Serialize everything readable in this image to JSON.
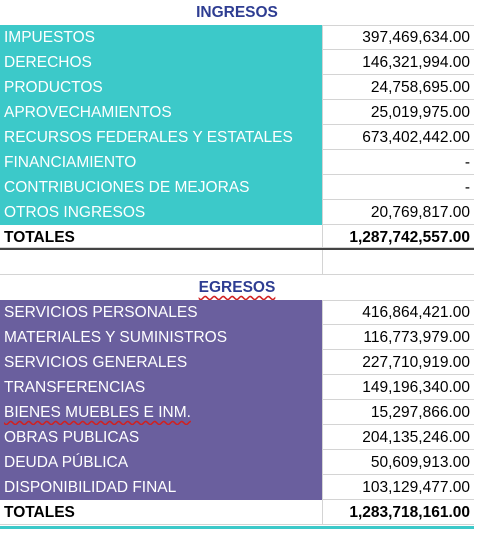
{
  "ingresos": {
    "title": "INGRESOS",
    "rows": [
      [
        "IMPUESTOS",
        "397,469,634.00"
      ],
      [
        "DERECHOS",
        "146,321,994.00"
      ],
      [
        "PRODUCTOS",
        "24,758,695.00"
      ],
      [
        "APROVECHAMIENTOS",
        "25,019,975.00"
      ],
      [
        "RECURSOS FEDERALES Y ESTATALES",
        "673,402,442.00"
      ],
      [
        "FINANCIAMIENTO",
        "-"
      ],
      [
        "CONTRIBUCIONES DE MEJORAS",
        "-"
      ],
      [
        "OTROS INGRESOS",
        "20,769,817.00"
      ]
    ],
    "total": [
      "TOTALES",
      "1,287,742,557.00"
    ]
  },
  "egresos": {
    "title": "EGRESOS",
    "rows": [
      [
        "SERVICIOS PERSONALES",
        "416,864,421.00"
      ],
      [
        "MATERIALES Y SUMINISTROS",
        "116,773,979.00"
      ],
      [
        "SERVICIOS GENERALES",
        "227,710,919.00"
      ],
      [
        "TRANSFERENCIAS",
        "149,196,340.00"
      ],
      [
        "BIENES MUEBLES E INM.",
        "15,297,866.00"
      ],
      [
        "OBRAS PUBLICAS",
        "204,135,246.00"
      ],
      [
        "DEUDA PÚBLICA",
        "50,609,913.00"
      ],
      [
        "DISPONIBILIDAD FINAL",
        "103,129,477.00"
      ]
    ],
    "total": [
      "TOTALES",
      "1,283,718,161.00"
    ]
  }
}
